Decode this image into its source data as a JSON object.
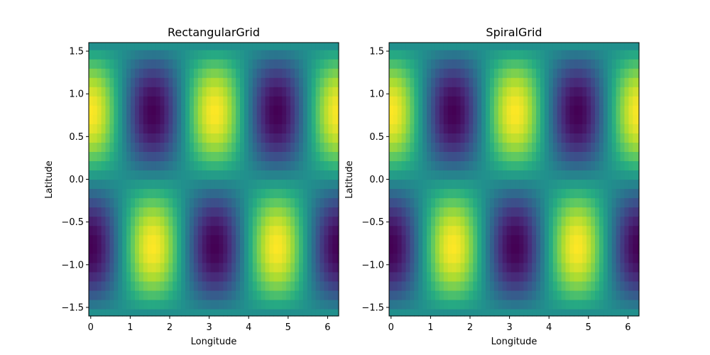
{
  "chart_data": [
    {
      "type": "heatmap",
      "title": "RectangularGrid",
      "xlabel": "Longitude",
      "ylabel": "Latitude",
      "xlim": [
        -0.05,
        6.28
      ],
      "ylim": [
        -1.6,
        1.6
      ],
      "xticks": [
        0,
        1,
        2,
        3,
        4,
        5,
        6
      ],
      "yticks": [
        -1.5,
        -1.0,
        -0.5,
        0.0,
        0.5,
        1.0,
        1.5
      ],
      "xtick_labels": [
        "0",
        "1",
        "2",
        "3",
        "4",
        "5",
        "6"
      ],
      "ytick_labels": [
        "−1.5",
        "−1.0",
        "−0.5",
        "0.0",
        "0.5",
        "1.0",
        "1.5"
      ],
      "colormap": "viridis",
      "value_range": [
        -1,
        1
      ],
      "field": "cos(2·longitude) · sin(2·latitude)",
      "x_samples": [
        0,
        6.2832,
        60
      ],
      "y_samples": [
        -1.5708,
        1.5708,
        30
      ],
      "grid": false
    },
    {
      "type": "heatmap",
      "title": "SpiralGrid",
      "xlabel": "Longitude",
      "ylabel": "Latitude",
      "xlim": [
        -0.05,
        6.28
      ],
      "ylim": [
        -1.6,
        1.6
      ],
      "xticks": [
        0,
        1,
        2,
        3,
        4,
        5,
        6
      ],
      "yticks": [
        -1.5,
        -1.0,
        -0.5,
        0.0,
        0.5,
        1.0,
        1.5
      ],
      "xtick_labels": [
        "0",
        "1",
        "2",
        "3",
        "4",
        "5",
        "6"
      ],
      "ytick_labels": [
        "−1.5",
        "−1.0",
        "−0.5",
        "0.0",
        "0.5",
        "1.0",
        "1.5"
      ],
      "colormap": "viridis",
      "value_range": [
        -1,
        1
      ],
      "field": "cos(2·longitude) · sin(2·latitude)",
      "x_samples": [
        0,
        6.2832,
        60
      ],
      "y_samples": [
        -1.5708,
        1.5708,
        30
      ],
      "grid": false
    }
  ]
}
